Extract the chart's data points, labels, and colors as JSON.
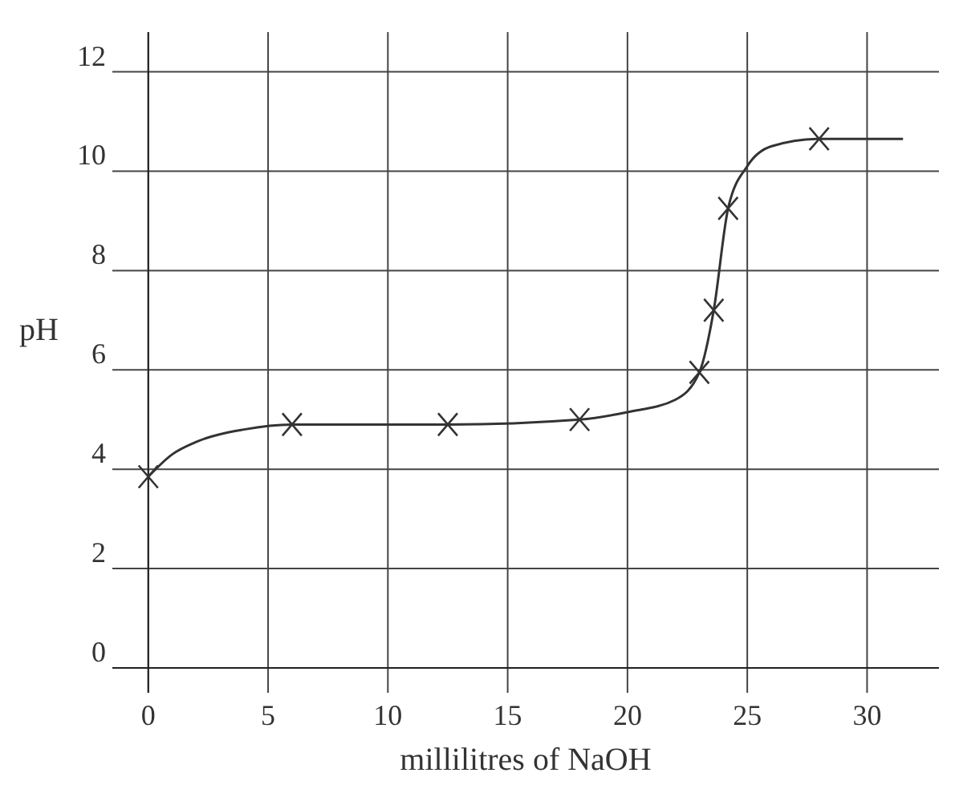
{
  "chart_data": {
    "type": "line",
    "xlabel": "millilitres of NaOH",
    "ylabel": "pH",
    "xlim": [
      -1.5,
      33
    ],
    "ylim": [
      -0.5,
      12.8
    ],
    "xticks": [
      0,
      5,
      10,
      15,
      20,
      25,
      30
    ],
    "yticks": [
      0,
      2,
      4,
      6,
      8,
      10,
      12
    ],
    "grid": true,
    "line_style": "solid",
    "series": [
      {
        "marker": "none",
        "color": "#333333",
        "x": [
          0,
          1,
          2,
          4,
          6,
          12.5,
          18,
          20,
          22,
          23,
          23.6,
          24.2,
          25,
          26,
          28,
          31.5
        ],
        "values": [
          3.85,
          4.3,
          4.55,
          4.8,
          4.9,
          4.9,
          5.0,
          5.15,
          5.4,
          5.95,
          7.2,
          9.25,
          10.1,
          10.5,
          10.65,
          10.65
        ]
      },
      {
        "type": "scatter",
        "marker": "cross",
        "color": "#333333",
        "x": [
          0,
          6,
          12.5,
          18,
          23,
          23.6,
          24.2,
          28
        ],
        "values": [
          3.85,
          4.9,
          4.9,
          5.0,
          5.95,
          7.2,
          9.25,
          10.65
        ]
      }
    ]
  }
}
